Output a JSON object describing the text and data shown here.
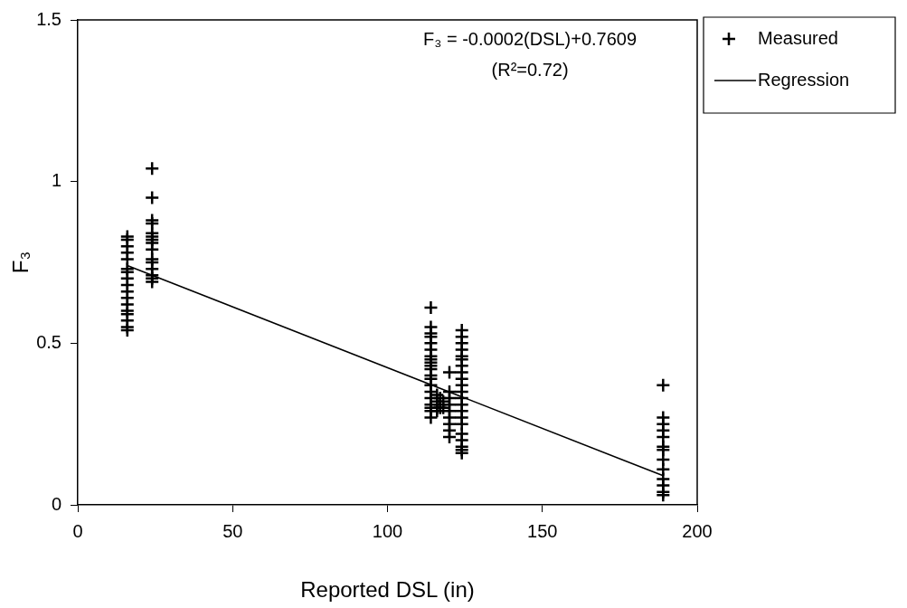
{
  "chart_data": {
    "type": "scatter",
    "xlabel": "Reported DSL (in)",
    "ylabel": "F₃",
    "annotations": [
      "F₃ = -0.0002(DSL)+0.7609",
      "(R²=0.72)"
    ],
    "xlim": [
      0,
      200
    ],
    "xticks": [
      0,
      50,
      100,
      150,
      200
    ],
    "ylim": [
      0,
      1.5
    ],
    "yticks": [
      0,
      {
        "value": 0.5,
        "label": "0.5"
      },
      1,
      1.5
    ],
    "grid": false,
    "legend": "top right",
    "marker": "cross",
    "series": [
      {
        "name": "Measured",
        "type": "scatter",
        "color": "#000000",
        "x": [
          16,
          16,
          16,
          16,
          16,
          16,
          16,
          16,
          16,
          16,
          16,
          16,
          16,
          16,
          16,
          16,
          16,
          24,
          24,
          24,
          24,
          24,
          24,
          24,
          24,
          24,
          24,
          24,
          24,
          24,
          24,
          24,
          114,
          114,
          114,
          114,
          114,
          114,
          114,
          114,
          114,
          114,
          114,
          114,
          114,
          114,
          114,
          114,
          114,
          114,
          114,
          114,
          116,
          116,
          116,
          116,
          117,
          117,
          117,
          118,
          118,
          120,
          120,
          120,
          120,
          120,
          120,
          120,
          120,
          120,
          124,
          124,
          124,
          124,
          124,
          124,
          124,
          124,
          124,
          124,
          124,
          124,
          124,
          124,
          124,
          124,
          124,
          124,
          124,
          124,
          124,
          189,
          189,
          189,
          189,
          189,
          189,
          189,
          189,
          189,
          189,
          189,
          189,
          189
        ],
        "values": [
          0.83,
          0.82,
          0.8,
          0.78,
          0.76,
          0.73,
          0.72,
          0.7,
          0.68,
          0.66,
          0.64,
          0.62,
          0.6,
          0.59,
          0.57,
          0.55,
          0.54,
          1.04,
          0.95,
          0.88,
          0.87,
          0.84,
          0.83,
          0.82,
          0.81,
          0.79,
          0.76,
          0.75,
          0.73,
          0.71,
          0.7,
          0.69,
          0.61,
          0.55,
          0.53,
          0.52,
          0.5,
          0.48,
          0.46,
          0.45,
          0.44,
          0.43,
          0.42,
          0.4,
          0.39,
          0.37,
          0.35,
          0.33,
          0.31,
          0.3,
          0.29,
          0.27,
          0.34,
          0.32,
          0.3,
          0.29,
          0.33,
          0.31,
          0.3,
          0.32,
          0.3,
          0.41,
          0.35,
          0.33,
          0.31,
          0.29,
          0.27,
          0.25,
          0.23,
          0.21,
          0.54,
          0.52,
          0.5,
          0.48,
          0.46,
          0.45,
          0.43,
          0.41,
          0.39,
          0.37,
          0.35,
          0.33,
          0.31,
          0.29,
          0.27,
          0.25,
          0.22,
          0.2,
          0.18,
          0.17,
          0.16,
          0.37,
          0.27,
          0.25,
          0.23,
          0.21,
          0.18,
          0.17,
          0.14,
          0.11,
          0.08,
          0.06,
          0.04,
          0.03
        ]
      },
      {
        "name": "Regression",
        "type": "line",
        "marker": "none",
        "color": "#000000",
        "x": [
          16,
          189
        ],
        "values": [
          0.74,
          0.09
        ]
      }
    ]
  }
}
